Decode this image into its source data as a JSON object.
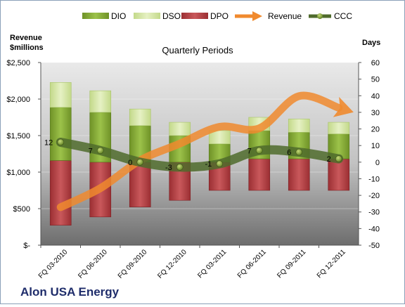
{
  "chart_data": {
    "type": "bar",
    "title": "Quarterly Periods",
    "company": "Alon USA Energy",
    "ylabel_left": "Revenue\n$millions",
    "ylabel_right": "Days",
    "categories": [
      "FQ 03-2010",
      "FQ 06-2010",
      "FQ 09-2010",
      "FQ 12-2010",
      "FQ 03-2011",
      "FQ 06-2011",
      "FQ 09-2011",
      "FQ 12-2011"
    ],
    "left_axis": {
      "ylim": [
        0,
        2500
      ],
      "ticks": [
        "$-",
        "$500",
        "$1,000",
        "$1,500",
        "$2,000",
        "$2,500"
      ]
    },
    "right_axis": {
      "ylim": [
        -50,
        60
      ],
      "ticks": [
        "-50",
        "-40",
        "-30",
        "-20",
        "-10",
        "0",
        "10",
        "20",
        "30",
        "40",
        "50",
        "60"
      ]
    },
    "legend": [
      "DIO",
      "DSO",
      "DPO",
      "Revenue",
      "CCC"
    ],
    "legend_position": "top",
    "series": [
      {
        "name": "DPO",
        "type": "bar",
        "axis": "right",
        "color": "#b83c40",
        "base": [
          -38,
          -33,
          -27,
          -23,
          -17,
          -17,
          -17,
          -17
        ],
        "values": [
          39,
          33,
          27,
          23,
          17,
          19,
          19,
          19
        ]
      },
      {
        "name": "DIO",
        "type": "bar",
        "axis": "right",
        "color": "#8fb43a",
        "values": [
          32,
          30,
          22,
          16,
          11,
          17,
          16,
          15
        ]
      },
      {
        "name": "DSO",
        "type": "bar",
        "axis": "right",
        "color": "#d6e8a4",
        "values": [
          15,
          13,
          10,
          8,
          8,
          8,
          8,
          7
        ]
      },
      {
        "name": "Revenue",
        "type": "line",
        "axis": "left",
        "color": "#f08a2e",
        "values": [
          520,
          780,
          1160,
          1390,
          1620,
          1600,
          2040,
          1880
        ]
      },
      {
        "name": "CCC",
        "type": "line",
        "axis": "right",
        "color": "#4f6b2c",
        "values": [
          12,
          7,
          0,
          -3,
          -1,
          7,
          6,
          2
        ],
        "labels": [
          "12",
          "7",
          "0",
          "-3",
          "-1",
          "7",
          "6",
          "2"
        ]
      }
    ],
    "grid": true
  }
}
